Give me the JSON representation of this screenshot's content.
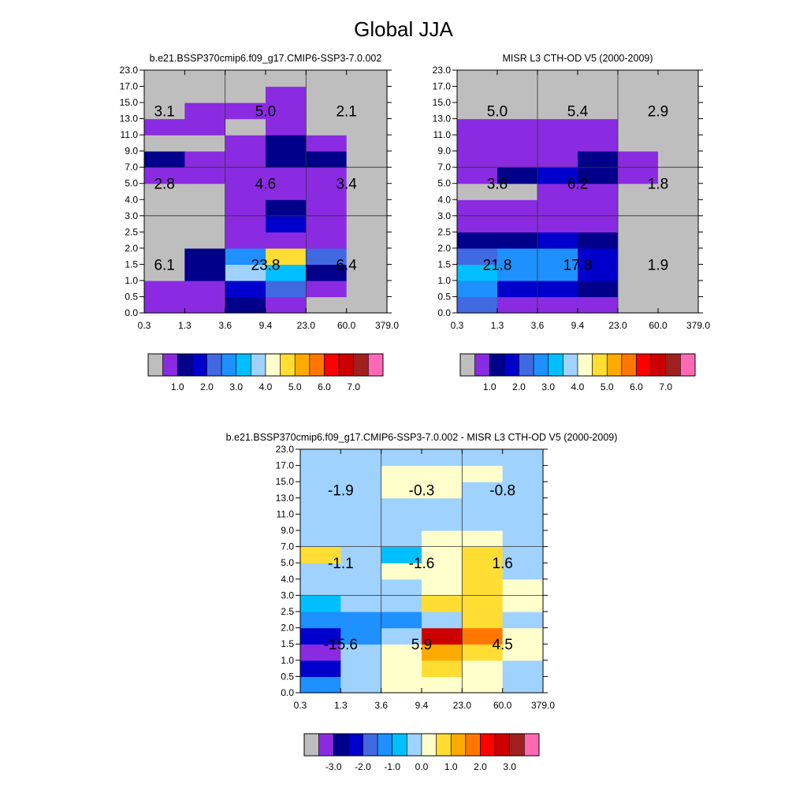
{
  "title": "Global JJA",
  "palettes": {
    "abs": [
      "#bebebe",
      "#8a2be2",
      "#00008b",
      "#0000cd",
      "#4169e1",
      "#1e90ff",
      "#00bfff",
      "#a0d2ff",
      "#ffffcc",
      "#ffdd33",
      "#ffaa00",
      "#ff7700",
      "#ff0000",
      "#cc0000",
      "#a02020",
      "#ff69b4"
    ],
    "diff": [
      "#bebebe",
      "#8a2be2",
      "#00008b",
      "#0000cd",
      "#4169e1",
      "#1e90ff",
      "#00bfff",
      "#a0d2ff",
      "#ffffcc",
      "#ffdd33",
      "#ffaa00",
      "#ff7700",
      "#ff0000",
      "#cc0000",
      "#a02020",
      "#ff69b4"
    ]
  },
  "chart_data": [
    {
      "type": "heatmap",
      "title": "b.e21.BSSP370cmip6.f09_g17.CMIP6-SSP3-7.0.002",
      "x_ticks": [
        "0.3",
        "1.3",
        "3.6",
        "9.4",
        "23.0",
        "60.0",
        "379.0"
      ],
      "y_ticks": [
        "0.0",
        "0.5",
        "1.0",
        "1.5",
        "2.0",
        "2.5",
        "3.0",
        "4.0",
        "5.0",
        "7.0",
        "9.0",
        "11.0",
        "13.0",
        "15.0",
        "17.0",
        "23.0"
      ],
      "palette": "abs",
      "colorbar_labels": [
        "1.0",
        "2.0",
        "3.0",
        "4.0",
        "5.0",
        "6.0",
        "7.0"
      ],
      "grid": [
        [
          1,
          1,
          2,
          1,
          0,
          0
        ],
        [
          1,
          1,
          3,
          4,
          1,
          0
        ],
        [
          0,
          2,
          7,
          6,
          2,
          0
        ],
        [
          0,
          2,
          5,
          9,
          4,
          0
        ],
        [
          0,
          0,
          1,
          1,
          1,
          0
        ],
        [
          0,
          0,
          1,
          3,
          1,
          0
        ],
        [
          0,
          0,
          1,
          2,
          1,
          0
        ],
        [
          0,
          0,
          1,
          1,
          1,
          0
        ],
        [
          1,
          1,
          1,
          1,
          1,
          0
        ],
        [
          2,
          1,
          1,
          2,
          2,
          0
        ],
        [
          0,
          0,
          1,
          2,
          1,
          0
        ],
        [
          1,
          1,
          0,
          1,
          0,
          0
        ],
        [
          0,
          1,
          1,
          1,
          0,
          0
        ],
        [
          0,
          0,
          0,
          1,
          0,
          0
        ],
        [
          0,
          0,
          0,
          0,
          0,
          0
        ]
      ],
      "box_totals": [
        {
          "label": "3.1",
          "col": 0.5,
          "row": 12.5
        },
        {
          "label": "5.0",
          "col": 3,
          "row": 12.5
        },
        {
          "label": "2.1",
          "col": 5,
          "row": 12.5
        },
        {
          "label": "2.8",
          "col": 0.5,
          "row": 8
        },
        {
          "label": "4.6",
          "col": 3,
          "row": 8
        },
        {
          "label": "3.4",
          "col": 5,
          "row": 8
        },
        {
          "label": "6.1",
          "col": 0.5,
          "row": 3
        },
        {
          "label": "23.8",
          "col": 3,
          "row": 3
        },
        {
          "label": "6.4",
          "col": 5,
          "row": 3
        }
      ]
    },
    {
      "type": "heatmap",
      "title": "MISR L3 CTH-OD V5 (2000-2009)",
      "x_ticks": [
        "0.3",
        "1.3",
        "3.6",
        "9.4",
        "23.0",
        "60.0",
        "379.0"
      ],
      "y_ticks": [
        "0.0",
        "0.5",
        "1.0",
        "1.5",
        "2.0",
        "2.5",
        "3.0",
        "4.0",
        "5.0",
        "7.0",
        "9.0",
        "11.0",
        "13.0",
        "15.0",
        "17.0",
        "23.0"
      ],
      "palette": "abs",
      "colorbar_labels": [
        "1.0",
        "2.0",
        "3.0",
        "4.0",
        "5.0",
        "6.0",
        "7.0"
      ],
      "grid": [
        [
          4,
          1,
          1,
          1,
          0,
          0
        ],
        [
          5,
          3,
          3,
          2,
          0,
          0
        ],
        [
          6,
          5,
          5,
          3,
          0,
          0
        ],
        [
          4,
          5,
          5,
          3,
          0,
          0
        ],
        [
          2,
          2,
          3,
          2,
          0,
          0
        ],
        [
          1,
          1,
          1,
          1,
          0,
          0
        ],
        [
          1,
          1,
          1,
          1,
          0,
          0
        ],
        [
          0,
          0,
          1,
          1,
          0,
          0
        ],
        [
          1,
          2,
          3,
          2,
          1,
          0
        ],
        [
          1,
          1,
          1,
          2,
          1,
          0
        ],
        [
          1,
          1,
          1,
          1,
          0,
          0
        ],
        [
          1,
          1,
          1,
          1,
          0,
          0
        ],
        [
          0,
          0,
          0,
          0,
          0,
          0
        ],
        [
          0,
          0,
          0,
          0,
          0,
          0
        ],
        [
          0,
          0,
          0,
          0,
          0,
          0
        ]
      ],
      "box_totals": [
        {
          "label": "5.0",
          "col": 1,
          "row": 12.5
        },
        {
          "label": "5.4",
          "col": 3,
          "row": 12.5
        },
        {
          "label": "2.9",
          "col": 5,
          "row": 12.5
        },
        {
          "label": "3.8",
          "col": 1,
          "row": 8
        },
        {
          "label": "6.2",
          "col": 3,
          "row": 8
        },
        {
          "label": "1.8",
          "col": 5,
          "row": 8
        },
        {
          "label": "21.8",
          "col": 1,
          "row": 3
        },
        {
          "label": "17.8",
          "col": 3,
          "row": 3
        },
        {
          "label": "1.9",
          "col": 5,
          "row": 3
        }
      ]
    },
    {
      "type": "heatmap",
      "title": "b.e21.BSSP370cmip6.f09_g17.CMIP6-SSP3-7.0.002 - MISR L3 CTH-OD V5 (2000-2009)",
      "x_ticks": [
        "0.3",
        "1.3",
        "3.6",
        "9.4",
        "23.0",
        "60.0",
        "379.0"
      ],
      "y_ticks": [
        "0.0",
        "0.5",
        "1.0",
        "1.5",
        "2.0",
        "2.5",
        "3.0",
        "4.0",
        "5.0",
        "7.0",
        "9.0",
        "11.0",
        "13.0",
        "15.0",
        "17.0",
        "23.0"
      ],
      "palette": "diff",
      "colorbar_labels": [
        "-3.0",
        "-2.0",
        "-1.0",
        "0.0",
        "1.0",
        "2.0",
        "3.0"
      ],
      "grid": [
        [
          5,
          7,
          8,
          8,
          8,
          7
        ],
        [
          3,
          7,
          8,
          9,
          8,
          7
        ],
        [
          1,
          7,
          8,
          10,
          9,
          8
        ],
        [
          3,
          5,
          7,
          13,
          11,
          8
        ],
        [
          5,
          5,
          5,
          7,
          9,
          7
        ],
        [
          6,
          7,
          7,
          9,
          9,
          8
        ],
        [
          7,
          7,
          7,
          8,
          9,
          8
        ],
        [
          7,
          7,
          8,
          8,
          9,
          7
        ],
        [
          9,
          7,
          6,
          8,
          9,
          7
        ],
        [
          7,
          7,
          7,
          8,
          8,
          7
        ],
        [
          7,
          7,
          7,
          7,
          7,
          7
        ],
        [
          7,
          7,
          7,
          7,
          7,
          7
        ],
        [
          7,
          7,
          8,
          8,
          7,
          7
        ],
        [
          7,
          7,
          8,
          8,
          8,
          7
        ],
        [
          7,
          7,
          7,
          7,
          7,
          7
        ]
      ],
      "box_totals": [
        {
          "label": "-1.9",
          "col": 1,
          "row": 12.5
        },
        {
          "label": "-0.3",
          "col": 3,
          "row": 12.5
        },
        {
          "label": "-0.8",
          "col": 5,
          "row": 12.5
        },
        {
          "label": "-1.1",
          "col": 1,
          "row": 8
        },
        {
          "label": "-1.6",
          "col": 3,
          "row": 8
        },
        {
          "label": "1.6",
          "col": 5,
          "row": 8
        },
        {
          "label": "-15.6",
          "col": 1,
          "row": 3
        },
        {
          "label": "5.9",
          "col": 3,
          "row": 3
        },
        {
          "label": "4.5",
          "col": 5,
          "row": 3
        }
      ]
    }
  ]
}
